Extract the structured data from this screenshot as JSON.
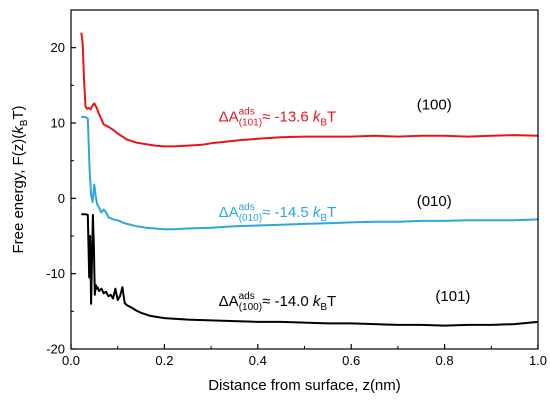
{
  "chart_data": {
    "type": "line",
    "title": "",
    "xlabel": "Distance from surface, z(nm)",
    "ylabel": {
      "prefix": "Free energy, F(z)(",
      "k": "k",
      "sub": "B",
      "suffix": "T)"
    },
    "xlim": [
      0,
      1.0
    ],
    "ylim": [
      -20,
      25
    ],
    "xticks": [
      0.0,
      0.2,
      0.4,
      0.6,
      0.8,
      1.0
    ],
    "xtick_labels": [
      "0.0",
      "0.2",
      "0.4",
      "0.6",
      "0.8",
      "1.0"
    ],
    "yticks": [
      -20,
      -10,
      0,
      10,
      20
    ],
    "ytick_labels": [
      "-20",
      "-10",
      "0",
      "10",
      "20"
    ],
    "grid": false,
    "series": [
      {
        "color": "#e8141c",
        "x": [
          0.022,
          0.025,
          0.028,
          0.031,
          0.034,
          0.038,
          0.042,
          0.046,
          0.05,
          0.055,
          0.06,
          0.065,
          0.07,
          0.08,
          0.09,
          0.1,
          0.11,
          0.12,
          0.14,
          0.16,
          0.18,
          0.2,
          0.22,
          0.25,
          0.28,
          0.3,
          0.33,
          0.36,
          0.4,
          0.45,
          0.5,
          0.55,
          0.6,
          0.65,
          0.7,
          0.75,
          0.8,
          0.85,
          0.9,
          0.95,
          1.0
        ],
        "y": [
          22.0,
          20.5,
          15.5,
          12.2,
          11.9,
          12.0,
          11.8,
          12.3,
          12.6,
          12.0,
          11.2,
          10.5,
          9.8,
          9.5,
          9.1,
          8.6,
          8.2,
          7.8,
          7.4,
          7.2,
          7.0,
          6.9,
          6.9,
          7.0,
          7.1,
          7.3,
          7.5,
          7.7,
          7.9,
          8.1,
          8.2,
          8.2,
          8.2,
          8.3,
          8.2,
          8.3,
          8.3,
          8.2,
          8.3,
          8.4,
          8.3
        ]
      },
      {
        "color": "#29a8e0",
        "x": [
          0.022,
          0.03,
          0.036,
          0.04,
          0.043,
          0.046,
          0.05,
          0.053,
          0.056,
          0.06,
          0.065,
          0.07,
          0.075,
          0.08,
          0.09,
          0.1,
          0.11,
          0.12,
          0.14,
          0.16,
          0.18,
          0.2,
          0.22,
          0.25,
          0.3,
          0.35,
          0.4,
          0.45,
          0.5,
          0.55,
          0.6,
          0.65,
          0.7,
          0.75,
          0.8,
          0.85,
          0.9,
          0.95,
          1.0
        ],
        "y": [
          10.8,
          10.8,
          10.6,
          3.5,
          0.5,
          -0.5,
          1.8,
          0.2,
          -0.8,
          -1.2,
          -1.9,
          -1.5,
          -1.8,
          -2.5,
          -2.8,
          -2.9,
          -3.2,
          -3.4,
          -3.7,
          -3.9,
          -4.0,
          -4.1,
          -4.1,
          -4.0,
          -3.9,
          -3.7,
          -3.6,
          -3.5,
          -3.4,
          -3.3,
          -3.2,
          -3.1,
          -3.1,
          -3.0,
          -3.0,
          -2.9,
          -2.9,
          -2.9,
          -2.8
        ]
      },
      {
        "color": "#000000",
        "x": [
          0.022,
          0.03,
          0.036,
          0.039,
          0.041,
          0.043,
          0.045,
          0.047,
          0.049,
          0.051,
          0.053,
          0.055,
          0.057,
          0.06,
          0.065,
          0.07,
          0.075,
          0.08,
          0.085,
          0.09,
          0.095,
          0.1,
          0.105,
          0.11,
          0.115,
          0.12,
          0.13,
          0.14,
          0.15,
          0.17,
          0.2,
          0.25,
          0.3,
          0.35,
          0.4,
          0.45,
          0.5,
          0.55,
          0.6,
          0.65,
          0.7,
          0.75,
          0.8,
          0.85,
          0.9,
          0.95,
          1.0
        ],
        "y": [
          -2.1,
          -2.1,
          -2.2,
          -10.5,
          -5.0,
          -14.0,
          -8.0,
          -2.2,
          -6.5,
          -12.8,
          -11.5,
          -12.0,
          -11.8,
          -12.3,
          -12.0,
          -12.6,
          -12.4,
          -13.0,
          -12.8,
          -13.3,
          -12.0,
          -13.5,
          -13.0,
          -11.8,
          -13.9,
          -14.2,
          -14.5,
          -14.9,
          -15.2,
          -15.6,
          -15.9,
          -16.1,
          -16.2,
          -16.3,
          -16.4,
          -16.4,
          -16.5,
          -16.6,
          -16.6,
          -16.7,
          -16.8,
          -16.8,
          -16.9,
          -16.8,
          -16.8,
          -16.7,
          -16.4
        ]
      }
    ],
    "annotations": [
      {
        "color": "#e8141c",
        "prefix": "ΔA",
        "sup": "ads",
        "sub": "(101)",
        "value": "≈ -13.6 ",
        "k": "k",
        "k_sub": "B",
        "unit": "T",
        "x": 0.125,
        "y": 10.2
      },
      {
        "color": "#29a8e0",
        "prefix": "ΔA",
        "sup": "ads",
        "sub": "(010)",
        "value": "≈ -14.5 ",
        "k": "k",
        "k_sub": "B",
        "unit": "T",
        "x": 0.125,
        "y": -2.5
      },
      {
        "color": "#000000",
        "prefix": "ΔA",
        "sup": "ads",
        "sub": "(100)",
        "value": "≈ -14.0 ",
        "k": "k",
        "k_sub": "B",
        "unit": "T",
        "x": 0.125,
        "y": -14.3
      }
    ],
    "facet_labels": [
      {
        "text": "(100)",
        "x": 0.735,
        "y": 11.8
      },
      {
        "text": "(010)",
        "x": 0.735,
        "y": -1.0
      },
      {
        "text": "(101)",
        "x": 0.775,
        "y": -13.6
      }
    ]
  }
}
